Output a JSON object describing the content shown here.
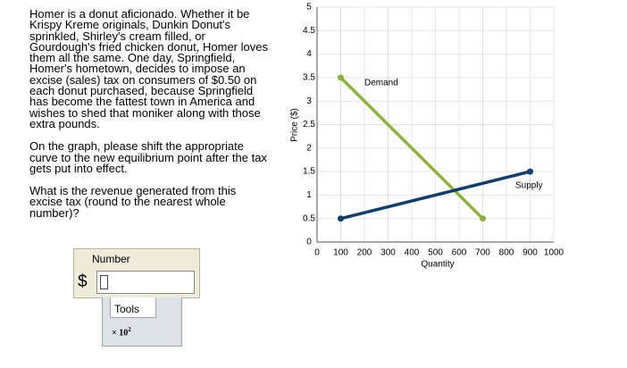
{
  "question": {
    "paragraphs": [
      [
        "Homer is a donut aficionado. Whether it be",
        "Krispy Kreme originals, Dunkin Donut's",
        "sprinkled, Shirley's cream filled, or",
        "Gourdough's fried chicken donut, Homer loves",
        "them all the same. One day, Springfield,",
        "Homer's hometown, decides to impose an",
        "excise (sales) tax on consumers of $0.50 on",
        "each donut purchased, because Springfield",
        "has become the fattest town in America and",
        "wishes to shed that moniker along with those",
        "extra pounds."
      ],
      [
        "On the graph, please shift the appropriate",
        "curve to the new equilibrium point after the tax",
        "gets put into effect."
      ],
      [
        "What is the revenue generated from this",
        "excise tax (round to the nearest whole",
        "number)?"
      ]
    ]
  },
  "answer": {
    "label": "Number",
    "currency": "$",
    "tools": "Tools",
    "multiplier": "× 10",
    "exponent": "2"
  },
  "chart_data": {
    "type": "line",
    "xlabel": "Quantity",
    "ylabel": "Price ($)",
    "series": [
      {
        "name": "Demand",
        "color": "#8db33a",
        "x": [
          100,
          700
        ],
        "values": [
          3.5,
          0.5
        ]
      },
      {
        "name": "Supply",
        "color": "#0f3f6e",
        "x": [
          100,
          900
        ],
        "values": [
          0.5,
          1.5
        ]
      }
    ],
    "xlim": [
      0,
      1000
    ],
    "xticks": [
      0,
      100,
      200,
      300,
      400,
      500,
      600,
      700,
      800,
      900,
      1000
    ],
    "ylim": [
      0,
      5
    ],
    "yticks": [
      0,
      0.5,
      1,
      1.5,
      2,
      2.5,
      3,
      3.5,
      4,
      4.5,
      5
    ],
    "grid": true
  }
}
